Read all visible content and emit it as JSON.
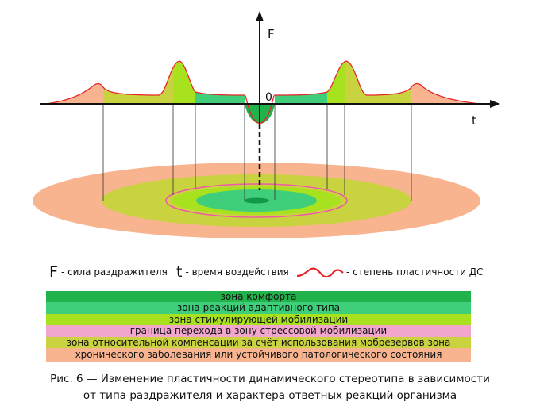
{
  "diagram": {
    "y_axis_label": "F",
    "x_axis_label": "t",
    "origin_label": "0"
  },
  "legend": {
    "f_symbol": "F",
    "f_text": "- сила раздражителя",
    "t_symbol": "t",
    "t_text": "- время воздействия",
    "curve_text": "- степень пластичности ДС"
  },
  "zones": [
    {
      "label": "зона комфорта",
      "color": "#22b24c"
    },
    {
      "label": "зона реакций адаптивного типа",
      "color": "#3fce7a"
    },
    {
      "label": "зона стимулирующей мобилизации",
      "color": "#a8e21e"
    },
    {
      "label": "граница перехода в зону стрессовой мобилизации",
      "color": "#f3a6cd"
    },
    {
      "label": "зона относительной компенсации за счёт использования мобрезервов зона",
      "color": "#c9d23f"
    },
    {
      "label": "хронического заболевания или устойчивого патологического состояния",
      "color": "#f8b48f"
    }
  ],
  "caption": {
    "line1": "Рис. 6 — Изменение пластичности динамического стереотипа в зависимости",
    "line2": "от типа раздражителя и характера ответных реакций организма"
  }
}
